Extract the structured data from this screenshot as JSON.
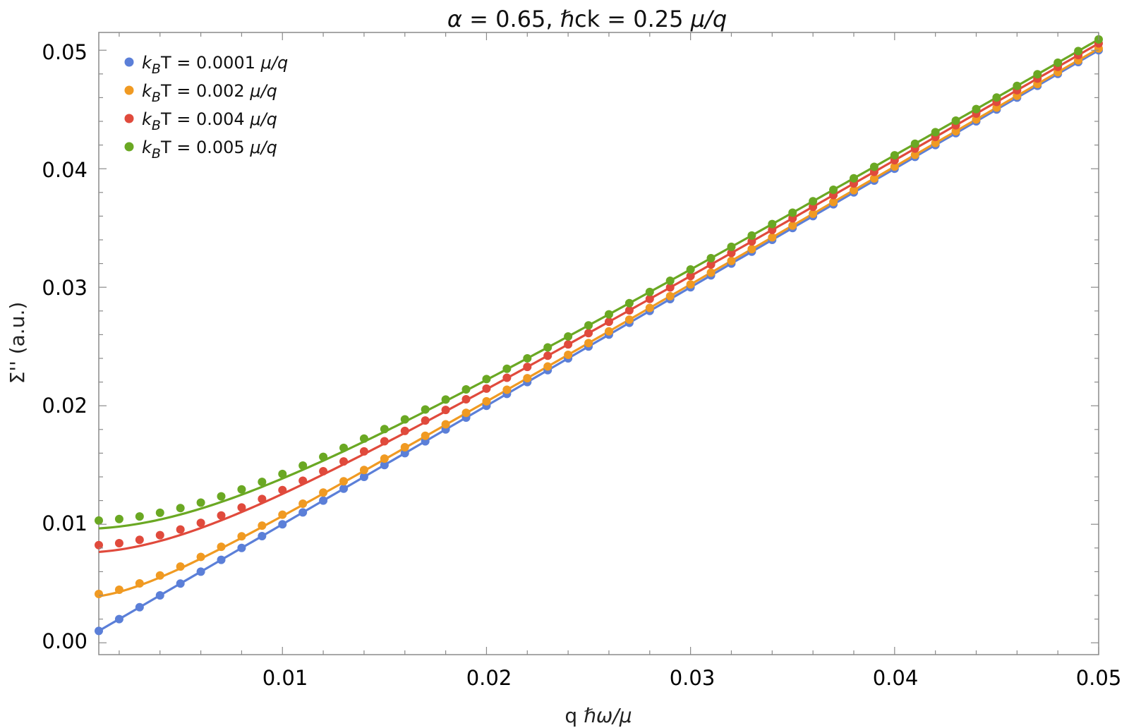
{
  "chart_data": {
    "type": "scatter",
    "title": "α = 0.65, ℏck = 0.25 μ/q",
    "title_parts": {
      "alpha": "α",
      "alpha_value": " = 0.65, ",
      "hbar_ck": "ℏck = 0.25 ",
      "mu_q": "μ/q"
    },
    "xlabel": "q ℏω/μ",
    "xlabel_parts": {
      "q": "q ",
      "hw_mu": "ℏω/μ"
    },
    "ylabel": "Σ'' (a.u.)",
    "xlim": [
      0.001,
      0.05
    ],
    "ylim": [
      -0.001,
      0.0515
    ],
    "x_ticks": [
      "0.01",
      "0.02",
      "0.03",
      "0.04",
      "0.05"
    ],
    "y_ticks": [
      "0.00",
      "0.01",
      "0.02",
      "0.03",
      "0.04",
      "0.05"
    ],
    "legend_position": "top-left",
    "series": [
      {
        "name": "k_B T = 0.0001 μ/q",
        "color": "#5b7fd8",
        "legend": {
          "k": "k",
          "sub": "B",
          "rest": "T = 0.0001 ",
          "unit": "μ/q"
        },
        "c0": 0.0,
        "points_y_offset": 0.0
      },
      {
        "name": "k_B T = 0.002 μ/q",
        "color": "#f09a22",
        "legend": {
          "k": "k",
          "sub": "B",
          "rest": "T = 0.002 ",
          "unit": "μ/q"
        },
        "c0": 0.0038,
        "points_y_offset": 0.0002
      },
      {
        "name": "k_B T = 0.004 μ/q",
        "color": "#e04a3c",
        "legend": {
          "k": "k",
          "sub": "B",
          "rest": "T = 0.004 ",
          "unit": "μ/q"
        },
        "c0": 0.0076,
        "points_y_offset": 0.0006
      },
      {
        "name": "k_B T = 0.005 μ/q",
        "color": "#6aa823",
        "legend": {
          "k": "k",
          "sub": "B",
          "rest": "T = 0.005 ",
          "unit": "μ/q"
        },
        "c0": 0.0096,
        "points_y_offset": 0.0007
      }
    ],
    "points_x": {
      "start": 0.001,
      "end": 0.05,
      "step": 0.001
    },
    "model": "y = sqrt(x^2 + c0^2) (fitted curves); dots = curve + offset fading out beyond x ≈ 0.02"
  }
}
